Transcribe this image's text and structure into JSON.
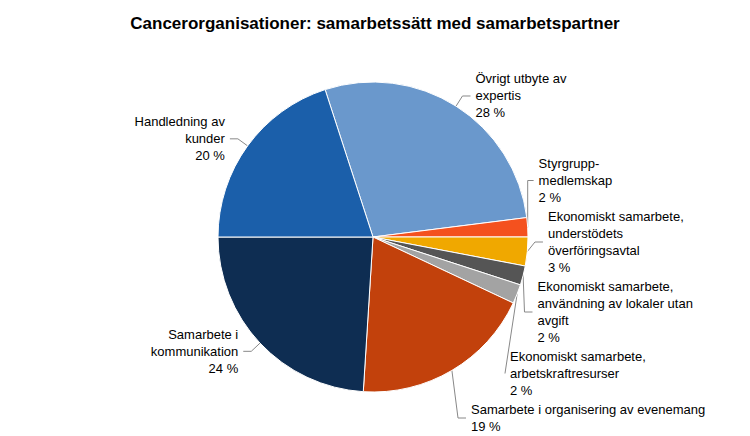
{
  "chart_data": {
    "type": "pie",
    "title": "Cancerorganisationer: samarbetssätt med samarbetspartner",
    "categories": [
      "Övrigt utbyte av expertis",
      "Styrgrupp-medlemskap",
      "Ekonomiskt samarbete, understödets överföringsavtal",
      "Ekonomiskt samarbete, användning av lokaler utan avgift",
      "Ekonomiskt samarbete, arbetskraftresurser",
      "Samarbete i organisering av evenemang",
      "Samarbete i kommunikation",
      "Handledning av kunder"
    ],
    "values": [
      28,
      2,
      3,
      2,
      2,
      19,
      24,
      20
    ],
    "value_labels": [
      "28 %",
      "2 %",
      "3 %",
      "2 %",
      "2 %",
      "19 %",
      "24 %",
      "20 %"
    ],
    "colors": [
      "#6a98cc",
      "#f4511e",
      "#f0a800",
      "#555555",
      "#a3a3a3",
      "#c2410c",
      "#0e2d52",
      "#1b5faa"
    ],
    "data_labels": true
  }
}
